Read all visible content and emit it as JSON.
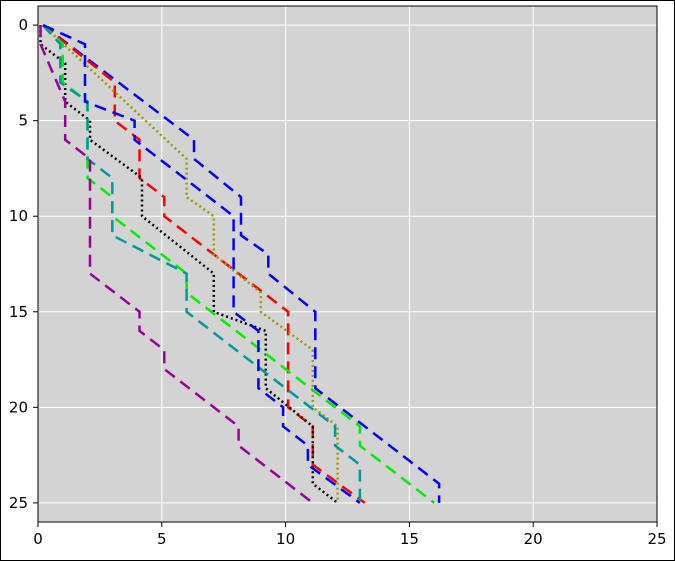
{
  "chart_data": {
    "type": "line",
    "title": "",
    "xlabel": "",
    "ylabel": "",
    "xlim": [
      0,
      25
    ],
    "ylim": [
      26,
      -1
    ],
    "y_inverted": true,
    "grid": true,
    "background": "#d3d3d3",
    "grid_color": "#ffffff",
    "x_ticks": [
      "0",
      "5",
      "10",
      "15",
      "20",
      "25"
    ],
    "y_ticks": [
      "0",
      "5",
      "10",
      "15",
      "20",
      "25"
    ],
    "series": [
      {
        "color": "#0000ff",
        "dash": "long",
        "x": [
          0.2,
          0.2,
          6.3,
          6.3,
          8.2,
          8.2,
          9.3,
          9.3,
          11.2,
          11.2,
          16.2,
          16.2
        ],
        "y": [
          0,
          0,
          6,
          7,
          9,
          11,
          12,
          13,
          15,
          19,
          24,
          25
        ]
      },
      {
        "color": "#ff0000",
        "dash": "long",
        "x": [
          0.2,
          0.2,
          3.1,
          3.1,
          4.1,
          4.1,
          5.1,
          5.1,
          10.1,
          10.1,
          11.1,
          11.1,
          13.2
        ],
        "y": [
          0,
          0,
          3,
          5,
          6,
          8,
          9,
          10,
          15,
          20,
          21,
          23,
          25
        ]
      },
      {
        "color": "#999900",
        "dash": "dotted",
        "x": [
          0.2,
          0.2,
          6.0,
          6.0,
          7.1,
          7.1,
          9.0,
          9.0,
          11.1,
          11.1,
          12.1,
          12.1
        ],
        "y": [
          0,
          0,
          7,
          9,
          10,
          12,
          14,
          15,
          17,
          20,
          21,
          25
        ]
      },
      {
        "color": "#000000",
        "dash": "dotted",
        "x": [
          0.1,
          0.1,
          1.1,
          1.1,
          2.1,
          2.1,
          4.2,
          4.2,
          7.1,
          7.1,
          9.2,
          9.2,
          11.1,
          11.1,
          12.1
        ],
        "y": [
          0,
          1,
          2,
          4,
          5,
          6,
          8,
          10,
          13,
          15,
          16,
          19,
          21,
          24,
          25
        ]
      },
      {
        "color": "#00ee00",
        "dash": "long",
        "x": [
          0.2,
          1.0,
          1.0,
          2.0,
          2.0,
          3.0,
          3.0,
          6.0,
          6.0,
          13.0,
          13.0,
          16.0
        ],
        "y": [
          0,
          1,
          3,
          4,
          8,
          9,
          10,
          13,
          14,
          21,
          22,
          25
        ]
      },
      {
        "color": "#009999",
        "dash": "long",
        "x": [
          0.2,
          0.9,
          0.9,
          2.0,
          2.0,
          3.0,
          3.0,
          6.0,
          6.0,
          12.0,
          12.0,
          13.0,
          13.0
        ],
        "y": [
          0,
          1,
          3,
          4,
          7,
          8,
          11,
          13,
          15,
          21,
          22,
          23,
          25
        ]
      },
      {
        "color": "#990099",
        "dash": "long",
        "x": [
          0.1,
          0.1,
          1.1,
          1.1,
          2.1,
          2.1,
          4.1,
          4.1,
          5.1,
          5.1,
          8.1,
          8.1,
          11.1
        ],
        "y": [
          0,
          1,
          4,
          6,
          7,
          13,
          15,
          16,
          17,
          18,
          21,
          22,
          25
        ]
      },
      {
        "color": "#0000ff",
        "dash": "long",
        "x": [
          0.2,
          0.2,
          1.9,
          1.9,
          3.9,
          3.9,
          7.9,
          7.9,
          8.9,
          8.9,
          9.9,
          9.9,
          10.9,
          10.9,
          13.0
        ],
        "y": [
          0,
          0,
          1,
          4,
          5,
          6,
          10,
          15,
          16,
          19,
          20,
          21,
          22,
          23,
          25
        ]
      }
    ]
  }
}
